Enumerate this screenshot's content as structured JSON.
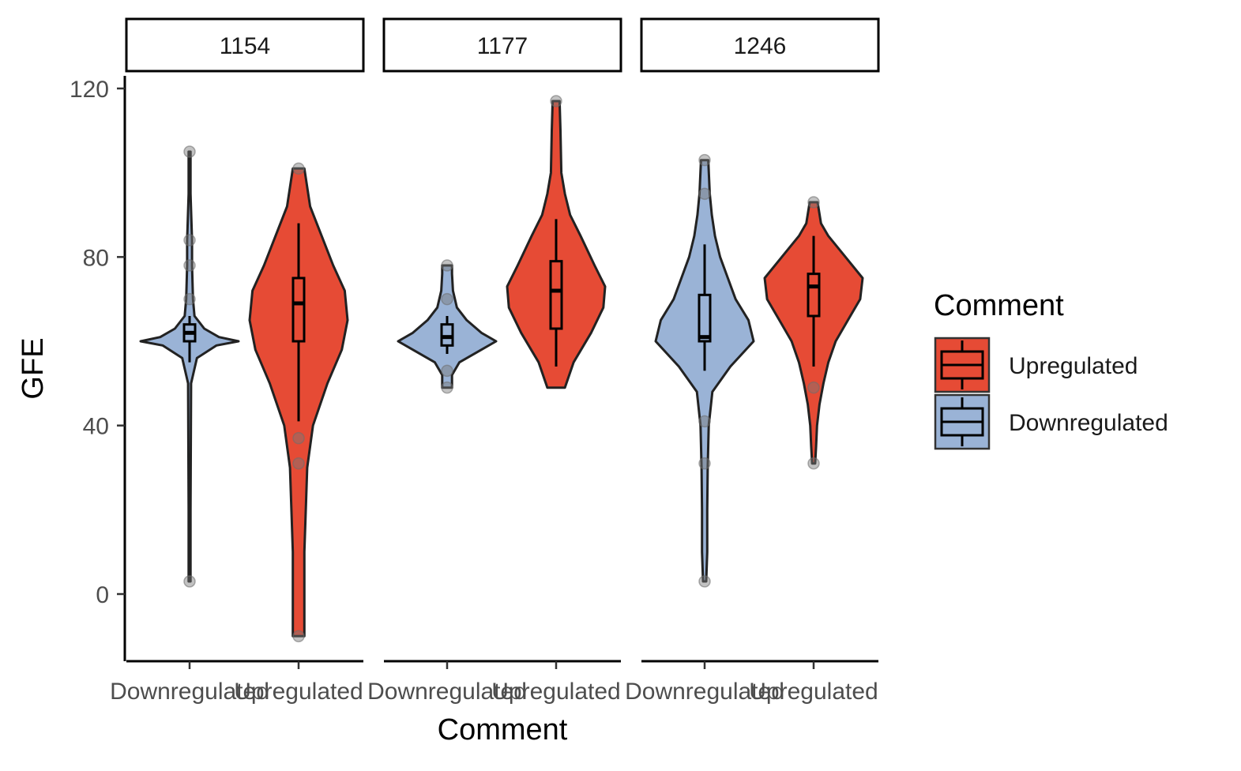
{
  "chart_data": {
    "type": "violin",
    "xlabel": "Comment",
    "ylabel": "GFE",
    "ylim": [
      -16,
      124
    ],
    "y_ticks": [
      0,
      40,
      80,
      120
    ],
    "y_tick_labels": [
      "0",
      "40",
      "80",
      "120"
    ],
    "categories": [
      "Downregulated",
      "Upregulated"
    ],
    "legend": {
      "title": "Comment",
      "placement": "right",
      "entries": [
        "Upregulated",
        "Downregulated"
      ]
    },
    "colors": {
      "Upregulated": "#E64B35",
      "Downregulated": "#9AB3D6"
    },
    "panels": [
      {
        "label": "1154",
        "groups": [
          {
            "category": "Downregulated",
            "box": {
              "whisker_low": 55,
              "q1": 60,
              "median": 62,
              "q3": 64,
              "whisker_high": 66
            },
            "outliers": [
              3,
              70,
              78,
              84,
              105
            ],
            "density": [
              [
                3,
                0.02
              ],
              [
                20,
                0.02
              ],
              [
                50,
                0.03
              ],
              [
                56,
                0.15
              ],
              [
                59,
                0.55
              ],
              [
                60,
                1.0
              ],
              [
                61,
                0.6
              ],
              [
                63,
                0.3
              ],
              [
                66,
                0.1
              ],
              [
                70,
                0.07
              ],
              [
                78,
                0.05
              ],
              [
                84,
                0.05
              ],
              [
                95,
                0.02
              ],
              [
                105,
                0.02
              ]
            ]
          },
          {
            "category": "Upregulated",
            "box": {
              "whisker_low": 41,
              "q1": 60,
              "median": 69,
              "q3": 75,
              "whisker_high": 88
            },
            "outliers": [
              -10,
              31,
              37,
              101
            ],
            "density": [
              [
                -10,
                0.02
              ],
              [
                10,
                0.02
              ],
              [
                30,
                0.03
              ],
              [
                40,
                0.05
              ],
              [
                50,
                0.1
              ],
              [
                58,
                0.15
              ],
              [
                65,
                0.17
              ],
              [
                72,
                0.16
              ],
              [
                78,
                0.12
              ],
              [
                85,
                0.08
              ],
              [
                92,
                0.04
              ],
              [
                101,
                0.02
              ]
            ]
          }
        ]
      },
      {
        "label": "1177",
        "groups": [
          {
            "category": "Downregulated",
            "box": {
              "whisker_low": 57,
              "q1": 59,
              "median": 61,
              "q3": 64,
              "whisker_high": 66
            },
            "outliers": [
              49,
              53,
              70,
              78
            ],
            "density": [
              [
                49,
                0.1
              ],
              [
                52,
                0.1
              ],
              [
                55,
                0.25
              ],
              [
                58,
                0.7
              ],
              [
                60,
                1.0
              ],
              [
                62,
                0.7
              ],
              [
                65,
                0.4
              ],
              [
                68,
                0.2
              ],
              [
                72,
                0.12
              ],
              [
                76,
                0.1
              ],
              [
                78,
                0.1
              ]
            ]
          },
          {
            "category": "Upregulated",
            "box": {
              "whisker_low": 54,
              "q1": 63,
              "median": 72,
              "q3": 79,
              "whisker_high": 89
            },
            "outliers": [
              117
            ],
            "density": [
              [
                49,
                0.05
              ],
              [
                55,
                0.1
              ],
              [
                62,
                0.2
              ],
              [
                68,
                0.27
              ],
              [
                73,
                0.28
              ],
              [
                78,
                0.22
              ],
              [
                85,
                0.14
              ],
              [
                90,
                0.08
              ],
              [
                95,
                0.05
              ],
              [
                100,
                0.03
              ],
              [
                110,
                0.025
              ],
              [
                117,
                0.02
              ]
            ]
          }
        ]
      },
      {
        "label": "1246",
        "groups": [
          {
            "category": "Downregulated",
            "box": {
              "whisker_low": 53,
              "q1": 60,
              "median": 61,
              "q3": 71,
              "whisker_high": 83
            },
            "outliers": [
              3,
              31,
              41,
              95,
              103
            ],
            "density": [
              [
                3,
                0.03
              ],
              [
                10,
                0.05
              ],
              [
                20,
                0.05
              ],
              [
                30,
                0.06
              ],
              [
                40,
                0.08
              ],
              [
                48,
                0.15
              ],
              [
                54,
                0.5
              ],
              [
                60,
                0.95
              ],
              [
                65,
                0.85
              ],
              [
                70,
                0.6
              ],
              [
                75,
                0.45
              ],
              [
                80,
                0.3
              ],
              [
                85,
                0.2
              ],
              [
                90,
                0.14
              ],
              [
                95,
                0.1
              ],
              [
                103,
                0.07
              ]
            ]
          },
          {
            "category": "Upregulated",
            "box": {
              "whisker_low": 54,
              "q1": 66,
              "median": 73,
              "q3": 76,
              "whisker_high": 85
            },
            "outliers": [
              31,
              49,
              93
            ],
            "density": [
              [
                31,
                0.03
              ],
              [
                35,
                0.05
              ],
              [
                40,
                0.07
              ],
              [
                45,
                0.12
              ],
              [
                50,
                0.2
              ],
              [
                55,
                0.3
              ],
              [
                60,
                0.45
              ],
              [
                65,
                0.7
              ],
              [
                70,
                0.95
              ],
              [
                75,
                1.0
              ],
              [
                80,
                0.65
              ],
              [
                85,
                0.3
              ],
              [
                88,
                0.15
              ],
              [
                93,
                0.08
              ]
            ]
          }
        ]
      }
    ]
  }
}
